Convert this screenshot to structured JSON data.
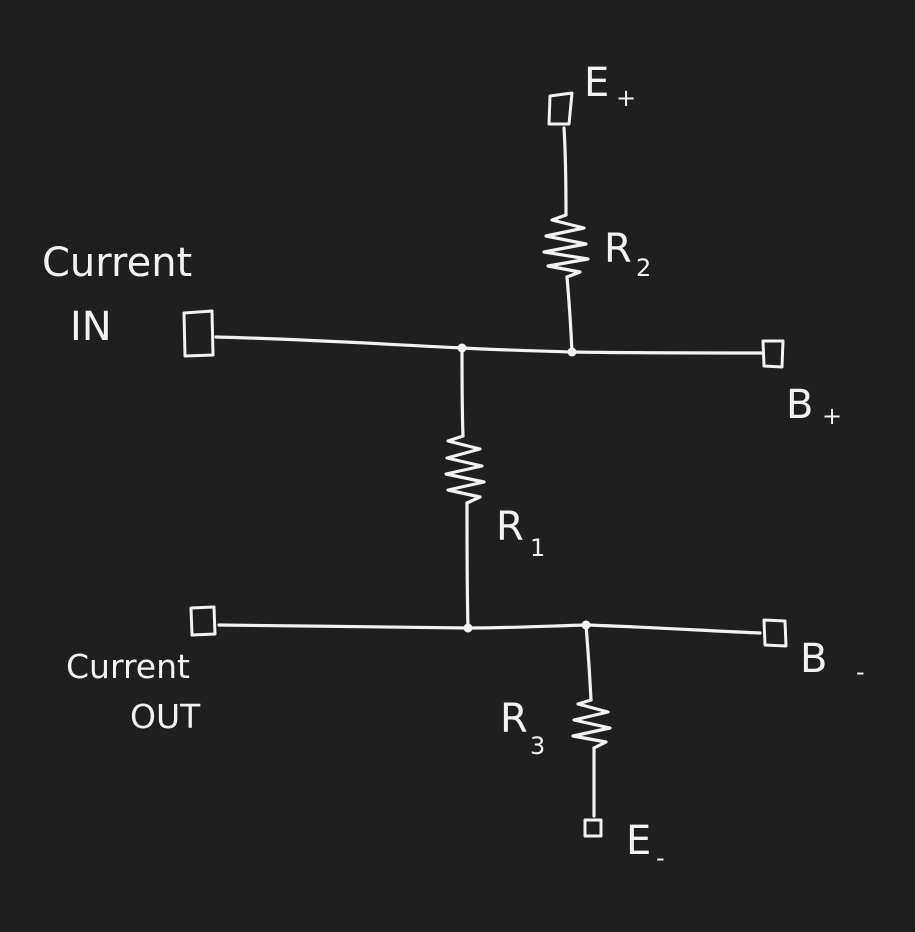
{
  "background": "#1f1f1f",
  "ink": "#f2f2f2",
  "labels": {
    "current_in_top": "Current",
    "current_in_bottom": "IN",
    "current_out_top": "Current",
    "current_out_bottom": "OUT",
    "r1": "R",
    "r1_sub": "1",
    "r2": "R",
    "r2_sub": "2",
    "r3": "R",
    "r3_sub": "3",
    "e_plus": "E",
    "e_plus_sub": "+",
    "e_minus": "E",
    "e_minus_sub": "-",
    "b_plus": "B",
    "b_plus_sub": "+",
    "b_minus": "B",
    "b_minus_sub": "-"
  }
}
